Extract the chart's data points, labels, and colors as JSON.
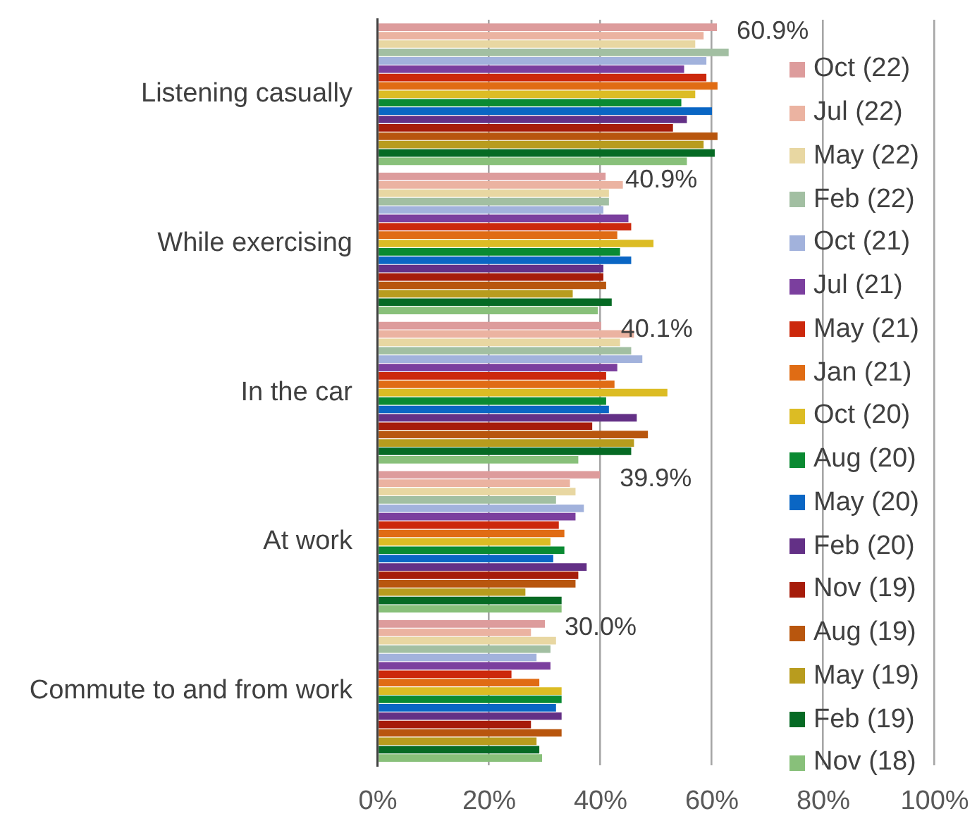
{
  "chart_data": {
    "type": "bar",
    "orientation": "horizontal",
    "categories": [
      "Listening casually",
      "While exercising",
      "In the car",
      "At work",
      "Commute to and from work"
    ],
    "series": [
      {
        "name": "Oct (22)",
        "color": "#dd9c9c",
        "values": [
          60.9,
          40.9,
          40.1,
          39.9,
          30.0
        ],
        "value_labels": [
          "60.9%",
          "40.9%",
          "40.1%",
          "39.9%",
          "30.0%"
        ]
      },
      {
        "name": "Jul (22)",
        "color": "#ebb3a1",
        "values": [
          58.5,
          44,
          46,
          34.5,
          27.5
        ]
      },
      {
        "name": "May (22)",
        "color": "#e8d7a2",
        "values": [
          57,
          41.5,
          43.5,
          35.5,
          32
        ]
      },
      {
        "name": "Feb (22)",
        "color": "#a2bfa2",
        "values": [
          63,
          41.5,
          45.5,
          32,
          31
        ]
      },
      {
        "name": "Oct (21)",
        "color": "#a2b2dc",
        "values": [
          59,
          40.5,
          47.5,
          37,
          28.5
        ]
      },
      {
        "name": "Jul (21)",
        "color": "#7b3f9e",
        "values": [
          55,
          45,
          43,
          35.5,
          31
        ]
      },
      {
        "name": "May (21)",
        "color": "#cc280c",
        "values": [
          59,
          45.5,
          41,
          32.5,
          24
        ]
      },
      {
        "name": "Jan (21)",
        "color": "#e06c14",
        "values": [
          61,
          43,
          42.5,
          33.5,
          29
        ]
      },
      {
        "name": "Oct (20)",
        "color": "#dcbc24",
        "values": [
          57,
          49.5,
          52,
          31,
          33
        ]
      },
      {
        "name": "Aug (20)",
        "color": "#0a8a32",
        "values": [
          54.5,
          43.5,
          41,
          33.5,
          33
        ]
      },
      {
        "name": "May (20)",
        "color": "#0a66c4",
        "values": [
          60,
          45.5,
          41.5,
          31.5,
          32
        ]
      },
      {
        "name": "Feb (20)",
        "color": "#633086",
        "values": [
          55.5,
          40.5,
          46.5,
          37.5,
          33
        ]
      },
      {
        "name": "Nov (19)",
        "color": "#a61c0a",
        "values": [
          53,
          40.5,
          38.5,
          36,
          27.5
        ]
      },
      {
        "name": "Aug (19)",
        "color": "#b8560e",
        "values": [
          61,
          41,
          48.5,
          35.5,
          33
        ]
      },
      {
        "name": "May (19)",
        "color": "#b89c1e",
        "values": [
          58.5,
          35,
          46,
          26.5,
          28.5
        ]
      },
      {
        "name": "Feb (19)",
        "color": "#066a24",
        "values": [
          60.5,
          42,
          45.5,
          33,
          29
        ]
      },
      {
        "name": "Nov (18)",
        "color": "#88c07a",
        "values": [
          55.5,
          39.5,
          36,
          33,
          29.5
        ]
      }
    ],
    "xlim": [
      0,
      100
    ],
    "xticks": [
      {
        "value": 0,
        "label": "0%"
      },
      {
        "value": 20,
        "label": "20%"
      },
      {
        "value": 40,
        "label": "40%"
      },
      {
        "value": 60,
        "label": "60%"
      },
      {
        "value": 80,
        "label": "80%"
      },
      {
        "value": 100,
        "label": "100%"
      }
    ],
    "grid": "x",
    "legend": "right"
  }
}
